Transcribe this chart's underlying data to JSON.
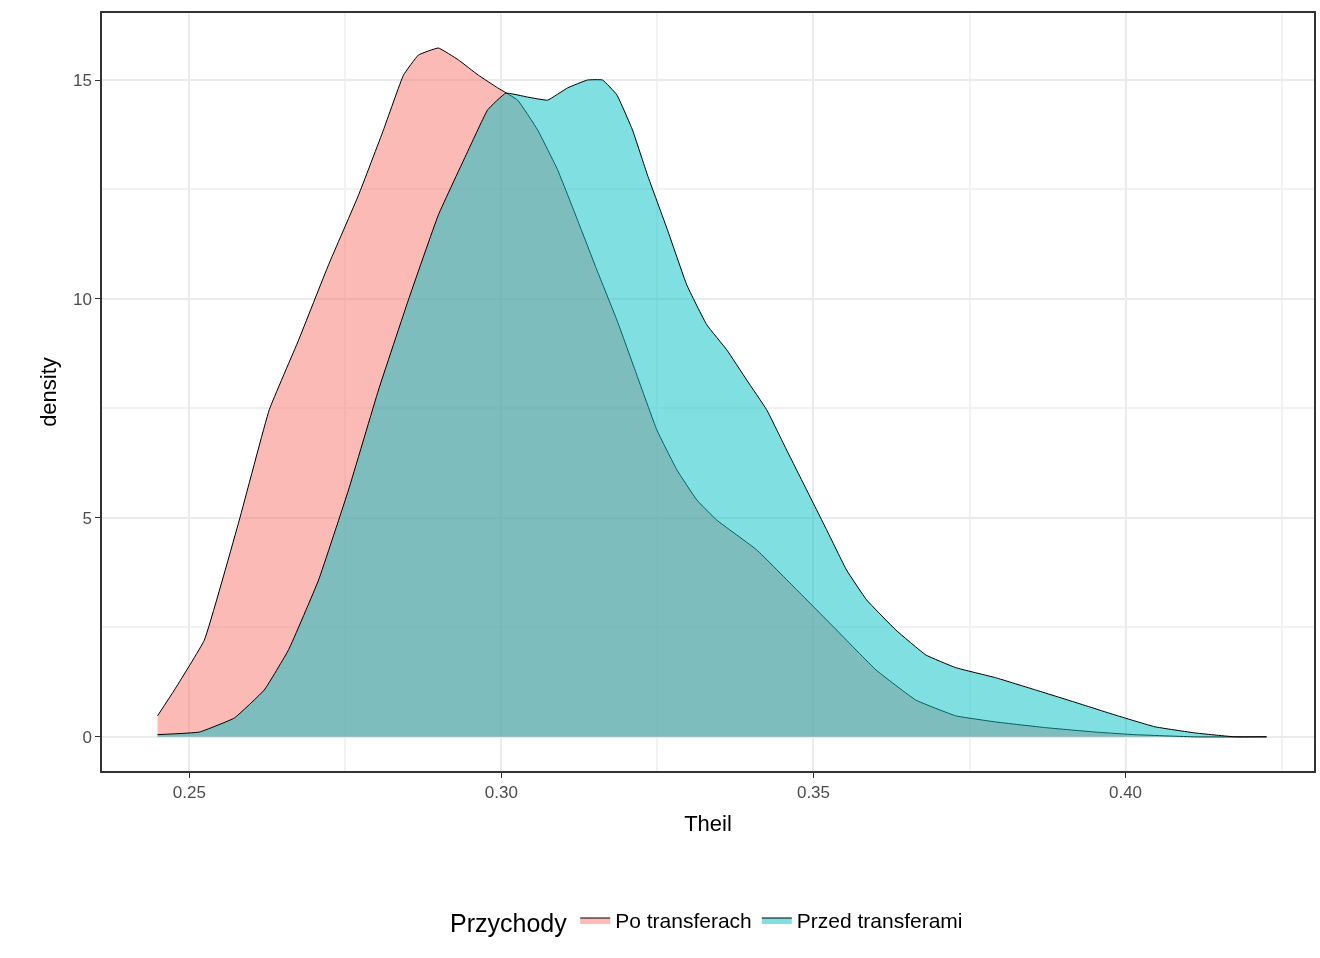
{
  "chart_data": {
    "type": "area",
    "xlabel": "Theil",
    "ylabel": "density",
    "legend_title": "Przychody",
    "legend": "bottom",
    "grid": true,
    "xlim": [
      0.236,
      0.4302
    ],
    "ylim": [
      -0.78,
      16.53
    ],
    "xticks": [
      {
        "value": 0.25,
        "label": "0.25"
      },
      {
        "value": 0.3,
        "label": "0.30"
      },
      {
        "value": 0.35,
        "label": "0.35"
      },
      {
        "value": 0.4,
        "label": "0.40"
      }
    ],
    "yticks": [
      0,
      5,
      10,
      15
    ],
    "series": [
      {
        "name": "Po transferach",
        "color": "#f8766d",
        "x": [
          0.2449,
          0.2476,
          0.2524,
          0.258,
          0.2628,
          0.2675,
          0.2723,
          0.2771,
          0.2811,
          0.2843,
          0.2867,
          0.2899,
          0.2931,
          0.2963,
          0.2994,
          0.3026,
          0.3058,
          0.309,
          0.3122,
          0.3153,
          0.3185,
          0.3217,
          0.3249,
          0.3281,
          0.3313,
          0.3345,
          0.3409,
          0.3473,
          0.3537,
          0.36,
          0.3664,
          0.3728,
          0.3792,
          0.3872,
          0.3951,
          0.4015,
          0.4111,
          0.4226
        ],
        "values": [
          0.48,
          1.07,
          2.21,
          4.95,
          7.47,
          9.06,
          10.78,
          12.37,
          13.86,
          15.11,
          15.57,
          15.73,
          15.46,
          15.11,
          14.82,
          14.54,
          13.86,
          12.95,
          11.8,
          10.66,
          9.52,
          8.26,
          7.01,
          6.1,
          5.41,
          4.95,
          4.27,
          3.36,
          2.44,
          1.53,
          0.84,
          0.48,
          0.34,
          0.21,
          0.11,
          0.05,
          0,
          0
        ]
      },
      {
        "name": "Przed transferami",
        "color": "#00bfc4",
        "x": [
          0.2449,
          0.2516,
          0.2572,
          0.262,
          0.2659,
          0.2707,
          0.2755,
          0.2803,
          0.2851,
          0.2899,
          0.2947,
          0.2978,
          0.3007,
          0.3042,
          0.3074,
          0.3106,
          0.3138,
          0.3162,
          0.3185,
          0.321,
          0.3234,
          0.3266,
          0.3297,
          0.3329,
          0.3361,
          0.3393,
          0.3425,
          0.3457,
          0.3489,
          0.3521,
          0.3553,
          0.3585,
          0.3632,
          0.368,
          0.3728,
          0.3792,
          0.3856,
          0.3919,
          0.3983,
          0.4047,
          0.4111,
          0.4175,
          0.4226
        ],
        "values": [
          0.05,
          0.11,
          0.43,
          1.07,
          1.99,
          3.58,
          5.64,
          7.92,
          9.98,
          11.92,
          13.4,
          14.32,
          14.7,
          14.61,
          14.54,
          14.82,
          15.0,
          15.0,
          14.66,
          13.86,
          12.83,
          11.58,
          10.32,
          9.41,
          8.84,
          8.15,
          7.47,
          6.55,
          5.64,
          4.73,
          3.81,
          3.13,
          2.44,
          1.87,
          1.58,
          1.35,
          1.07,
          0.79,
          0.5,
          0.23,
          0.09,
          0,
          0
        ]
      }
    ]
  }
}
